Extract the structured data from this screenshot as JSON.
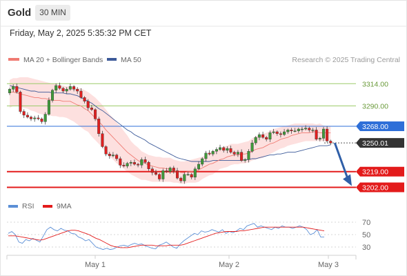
{
  "header": {
    "symbol": "Gold",
    "timeframe": "30 MIN",
    "datetime": "Friday, May 2, 2025 5:35:32 PM CET"
  },
  "legend": {
    "ma20_bb": "MA 20 + Bollinger Bands",
    "ma50": "MA 50",
    "credit": "Research © 2025 Trading Central"
  },
  "rsi_legend": {
    "rsi": "RSI",
    "ma9": "9MA"
  },
  "colors": {
    "ma20": "#f07a72",
    "bollinger_fill": "#fde0df",
    "ma50": "#3c5a99",
    "resistance_green": "#9ccb6a",
    "support_red": "#e31b1b",
    "pivot_blue": "#2e6fd8",
    "forecast_arrow": "#2f5fa8",
    "current_price_tag": "#333333",
    "rsi_line": "#5b8fd6",
    "rsi_ma": "#e31b1b"
  },
  "chart_data": [
    {
      "type": "candlestick",
      "title": "Gold 30 MIN",
      "x_ticks": [
        "May 1",
        "May 2",
        "May 3"
      ],
      "ylim": [
        3195,
        3320
      ],
      "levels": [
        {
          "value": 3314.0,
          "label": "3314.00",
          "kind": "resistance"
        },
        {
          "value": 3290.0,
          "label": "3290.00",
          "kind": "resistance"
        },
        {
          "value": 3268.0,
          "label": "3268.00",
          "kind": "pivot"
        },
        {
          "value": 3250.01,
          "label": "3250.01",
          "kind": "current"
        },
        {
          "value": 3219.0,
          "label": "3219.00",
          "kind": "support"
        },
        {
          "value": 3202.0,
          "label": "3202.00",
          "kind": "support"
        }
      ],
      "close": [
        3308,
        3311,
        3305,
        3284,
        3280,
        3278,
        3276,
        3277,
        3276,
        3273,
        3281,
        3296,
        3307,
        3312,
        3309,
        3306,
        3308,
        3311,
        3308,
        3306,
        3299,
        3295,
        3288,
        3286,
        3276,
        3260,
        3246,
        3238,
        3236,
        3237,
        3233,
        3226,
        3225,
        3228,
        3229,
        3227,
        3226,
        3232,
        3229,
        3222,
        3218,
        3216,
        3211,
        3220,
        3219,
        3223,
        3220,
        3212,
        3209,
        3216,
        3216,
        3213,
        3222,
        3227,
        3233,
        3239,
        3238,
        3241,
        3243,
        3245,
        3242,
        3244,
        3240,
        3238,
        3240,
        3231,
        3232,
        3241,
        3250,
        3256,
        3259,
        3256,
        3254,
        3261,
        3262,
        3260,
        3259,
        3262,
        3264,
        3263,
        3263,
        3265,
        3265,
        3266,
        3264,
        3264,
        3254,
        3255,
        3265,
        3252,
        3250
      ],
      "ma20": [
        3305,
        3305,
        3304,
        3303,
        3302,
        3301,
        3300,
        3299,
        3299,
        3298,
        3298,
        3297,
        3296,
        3296,
        3296,
        3295,
        3295,
        3295,
        3293,
        3291,
        3290,
        3287,
        3285,
        3281,
        3277,
        3273,
        3269,
        3264,
        3260,
        3256,
        3252,
        3248,
        3244,
        3240,
        3237,
        3234,
        3231,
        3229,
        3228,
        3226,
        3225,
        3224,
        3223,
        3223,
        3222,
        3222,
        3220,
        3219,
        3218,
        3218,
        3219,
        3219,
        3220,
        3221,
        3223,
        3225,
        3227,
        3228,
        3230,
        3232,
        3233,
        3235,
        3236,
        3237,
        3237,
        3238,
        3238,
        3239,
        3241,
        3243,
        3244,
        3245,
        3247,
        3249,
        3250,
        3252,
        3254,
        3255,
        3256,
        3258,
        3259,
        3260,
        3261,
        3261,
        3261,
        3262,
        3262,
        3261,
        3261,
        3261,
        3261
      ],
      "bb_upper": [
        3318,
        3320,
        3320,
        3321,
        3321,
        3321,
        3320,
        3319,
        3318,
        3317,
        3316,
        3315,
        3314,
        3314,
        3312,
        3312,
        3311,
        3311,
        3310,
        3309,
        3309,
        3307,
        3305,
        3302,
        3299,
        3295,
        3291,
        3286,
        3281,
        3277,
        3272,
        3268,
        3263,
        3258,
        3252,
        3248,
        3245,
        3241,
        3239,
        3237,
        3236,
        3235,
        3235,
        3234,
        3234,
        3234,
        3232,
        3231,
        3230,
        3230,
        3231,
        3232,
        3233,
        3234,
        3235,
        3237,
        3239,
        3241,
        3242,
        3244,
        3246,
        3247,
        3249,
        3249,
        3249,
        3250,
        3251,
        3252,
        3255,
        3257,
        3258,
        3260,
        3261,
        3263,
        3265,
        3266,
        3267,
        3268,
        3269,
        3270,
        3271,
        3271,
        3271,
        3271,
        3271,
        3271,
        3270,
        3271,
        3269,
        3268,
        3268
      ],
      "bb_lower": [
        3288,
        3290,
        3290,
        3289,
        3288,
        3287,
        3285,
        3284,
        3282,
        3281,
        3280,
        3280,
        3279,
        3279,
        3278,
        3278,
        3277,
        3275,
        3273,
        3270,
        3267,
        3264,
        3262,
        3257,
        3253,
        3249,
        3245,
        3239,
        3235,
        3232,
        3228,
        3225,
        3222,
        3219,
        3216,
        3214,
        3212,
        3210,
        3210,
        3209,
        3208,
        3208,
        3208,
        3208,
        3208,
        3208,
        3207,
        3207,
        3206,
        3206,
        3207,
        3207,
        3207,
        3208,
        3211,
        3213,
        3215,
        3216,
        3219,
        3222,
        3223,
        3224,
        3226,
        3227,
        3227,
        3228,
        3228,
        3229,
        3231,
        3232,
        3233,
        3234,
        3236,
        3238,
        3240,
        3242,
        3244,
        3245,
        3247,
        3248,
        3249,
        3250,
        3251,
        3252,
        3252,
        3252,
        3252,
        3252,
        3252,
        3252,
        3252
      ],
      "ma50": [
        3312,
        3311,
        3310,
        3309,
        3308,
        3307,
        3306,
        3306,
        3305,
        3305,
        3305,
        3305,
        3304,
        3304,
        3304,
        3304,
        3303,
        3303,
        3302,
        3301,
        3299,
        3297,
        3295,
        3293,
        3290,
        3287,
        3285,
        3282,
        3279,
        3276,
        3273,
        3270,
        3267,
        3264,
        3262,
        3259,
        3257,
        3255,
        3253,
        3250,
        3248,
        3246,
        3244,
        3242,
        3240,
        3238,
        3236,
        3234,
        3233,
        3232,
        3231,
        3230,
        3230,
        3230,
        3230,
        3230,
        3230,
        3231,
        3231,
        3231,
        3231,
        3231,
        3231,
        3231,
        3231,
        3231,
        3232,
        3232,
        3233,
        3233,
        3234,
        3235,
        3236,
        3237,
        3237,
        3238,
        3238,
        3239,
        3240,
        3240,
        3240,
        3241,
        3242,
        3243,
        3244,
        3245,
        3246,
        3247,
        3247,
        3247,
        3248
      ],
      "forecast": {
        "from": 3250.01,
        "to": 3202.0
      }
    },
    {
      "type": "line",
      "title": "RSI",
      "ylim": [
        20,
        80
      ],
      "y_ticks": [
        "70",
        "50",
        "30"
      ],
      "series": [
        {
          "name": "RSI",
          "values": [
            52,
            55,
            50,
            38,
            36,
            42,
            40,
            44,
            41,
            38,
            48,
            58,
            62,
            58,
            56,
            60,
            57,
            56,
            52,
            51,
            46,
            44,
            40,
            42,
            36,
            30,
            28,
            26,
            28,
            26,
            27,
            30,
            32,
            33,
            31,
            34,
            36,
            34,
            35,
            32,
            30,
            28,
            27,
            33,
            35,
            38,
            34,
            30,
            28,
            35,
            40,
            44,
            48,
            52,
            50,
            56,
            54,
            55,
            58,
            56,
            54,
            58,
            52,
            55,
            53,
            56,
            60,
            58,
            64,
            66,
            68,
            62,
            64,
            62,
            60,
            58,
            62,
            60,
            64,
            62,
            62,
            60,
            62,
            64,
            62,
            58,
            50,
            52,
            58,
            46,
            46
          ]
        },
        {
          "name": "9MA",
          "values": [
            48,
            48,
            48,
            47,
            46,
            45,
            44,
            43,
            42,
            41,
            42,
            44,
            46,
            48,
            50,
            52,
            54,
            56,
            57,
            57,
            56,
            54,
            52,
            50,
            47,
            44,
            42,
            39,
            36,
            33,
            31,
            30,
            29,
            29,
            29,
            30,
            31,
            32,
            33,
            33,
            33,
            33,
            32,
            32,
            32,
            32,
            33,
            33,
            33,
            33,
            34,
            36,
            38,
            40,
            42,
            44,
            46,
            48,
            50,
            52,
            53,
            54,
            55,
            55,
            55,
            55,
            56,
            56,
            57,
            58,
            59,
            60,
            61,
            62,
            62,
            62,
            62,
            62,
            62,
            62,
            62,
            62,
            62,
            62,
            62,
            61,
            60,
            59,
            58,
            57,
            56
          ]
        }
      ]
    }
  ]
}
